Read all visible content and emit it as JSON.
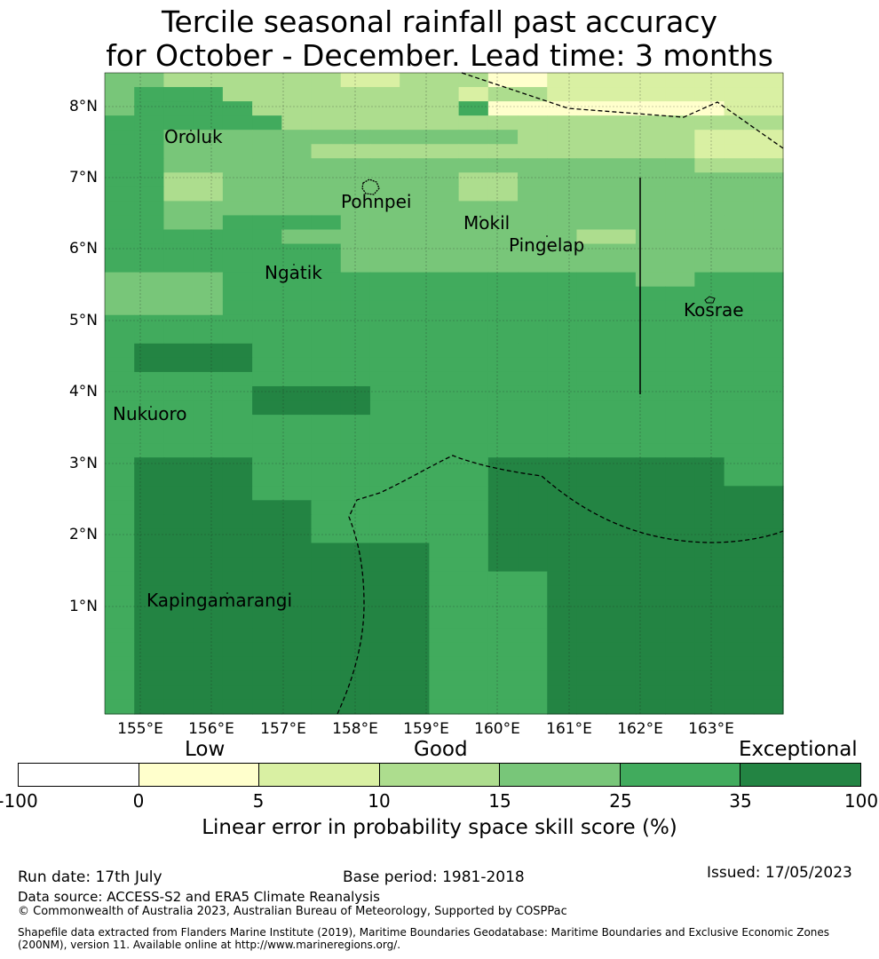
{
  "title_line1": "Tercile seasonal rainfall past accuracy",
  "title_line2": "for October - December. Lead time: 3 months",
  "lat_labels": [
    "8°N",
    "7°N",
    "6°N",
    "5°N",
    "4°N",
    "3°N",
    "2°N",
    "1°N"
  ],
  "lon_labels": [
    "155°E",
    "156°E",
    "157°E",
    "158°E",
    "159°E",
    "160°E",
    "161°E",
    "162°E",
    "163°E"
  ],
  "places": {
    "oroluk": "Oroluk",
    "pohnpei": "Pohnpei",
    "mokil": "Mokil",
    "pingelap": "Pingelap",
    "ngatik": "Ngatik",
    "kosrae": "Kosrae",
    "nukuoro": "Nukuoro",
    "kapingamarangi": "Kapingamarangi"
  },
  "colorbar": {
    "categories": {
      "low": "Low",
      "good": "Good",
      "exceptional": "Exceptional"
    },
    "ticks": [
      "-100",
      "0",
      "5",
      "10",
      "15",
      "25",
      "35",
      "100"
    ],
    "colors": [
      "#ffffff",
      "#ffffcc",
      "#d9f0a3",
      "#addd8e",
      "#78c679",
      "#41ab5d",
      "#238443"
    ],
    "title": "Linear error in probability space skill score (%)"
  },
  "footer": {
    "run_date": "Run date: 17th July",
    "base_period": "Base period: 1981-2018",
    "issued": "Issued: 17/05/2023",
    "data_source": "Data source: ACCESS-S2 and ERA5 Climate Reanalysis",
    "copyright": "© Commonwealth of Australia 2023, Australian Bureau of Meteorology, Supported by COSPPac",
    "shapefile_line1": "Shapefile data extracted from Flanders Marine Institute (2019), Maritime Boundaries Geodatabase: Maritime Boundaries and Exclusive Economic Zones",
    "shapefile_line2": "(200NM), version 11. Available online at http://www.marineregions.org/."
  },
  "skill_grid_legend_classes": [
    "0-5",
    "5-10",
    "10-15",
    "15-25",
    "25-35",
    "35-100"
  ],
  "skill_grid": [
    [
      3,
      3,
      2,
      2,
      2,
      2,
      2,
      2,
      1,
      1,
      2,
      2,
      2,
      0,
      0,
      1,
      1,
      1,
      1,
      1,
      1,
      1,
      1
    ],
    [
      3,
      4,
      4,
      4,
      2,
      2,
      2,
      2,
      2,
      2,
      2,
      2,
      1,
      2,
      2,
      1,
      1,
      1,
      1,
      1,
      1,
      1,
      1
    ],
    [
      3,
      4,
      4,
      4,
      4,
      2,
      2,
      2,
      2,
      2,
      2,
      2,
      4,
      0,
      0,
      0,
      0,
      0,
      0,
      0,
      0,
      1,
      1
    ],
    [
      4,
      4,
      4,
      4,
      4,
      4,
      2,
      2,
      2,
      2,
      2,
      2,
      2,
      2,
      2,
      2,
      2,
      2,
      2,
      2,
      2,
      2,
      2
    ],
    [
      4,
      4,
      3,
      3,
      3,
      3,
      3,
      3,
      3,
      3,
      3,
      3,
      3,
      3,
      2,
      2,
      2,
      2,
      2,
      2,
      1,
      1,
      1
    ],
    [
      4,
      4,
      3,
      3,
      3,
      3,
      3,
      2,
      2,
      2,
      2,
      2,
      2,
      2,
      2,
      2,
      2,
      2,
      2,
      2,
      1,
      1,
      1
    ],
    [
      4,
      4,
      3,
      3,
      3,
      3,
      3,
      3,
      3,
      3,
      3,
      3,
      3,
      3,
      3,
      3,
      3,
      3,
      3,
      3,
      2,
      2,
      2
    ],
    [
      4,
      4,
      2,
      2,
      3,
      3,
      3,
      3,
      3,
      3,
      3,
      3,
      2,
      2,
      3,
      3,
      3,
      3,
      3,
      3,
      3,
      3,
      3
    ],
    [
      4,
      4,
      2,
      2,
      3,
      3,
      3,
      3,
      3,
      3,
      3,
      3,
      2,
      2,
      3,
      3,
      3,
      3,
      3,
      3,
      3,
      3,
      3
    ],
    [
      4,
      4,
      3,
      3,
      3,
      3,
      3,
      3,
      3,
      3,
      3,
      3,
      3,
      3,
      3,
      3,
      3,
      3,
      3,
      3,
      3,
      3,
      3
    ],
    [
      4,
      4,
      3,
      3,
      4,
      4,
      4,
      4,
      3,
      3,
      3,
      3,
      3,
      3,
      3,
      3,
      3,
      3,
      3,
      3,
      3,
      3,
      3
    ],
    [
      4,
      4,
      4,
      4,
      4,
      4,
      3,
      3,
      3,
      3,
      3,
      3,
      3,
      3,
      3,
      3,
      2,
      2,
      3,
      3,
      3,
      3,
      3
    ],
    [
      4,
      4,
      4,
      4,
      4,
      4,
      4,
      4,
      3,
      3,
      3,
      3,
      3,
      3,
      3,
      3,
      3,
      3,
      3,
      3,
      3,
      3,
      3
    ],
    [
      4,
      4,
      4,
      4,
      4,
      4,
      4,
      4,
      3,
      3,
      3,
      3,
      3,
      3,
      3,
      3,
      3,
      3,
      3,
      3,
      3,
      3,
      3
    ],
    [
      3,
      3,
      3,
      3,
      4,
      4,
      4,
      4,
      4,
      4,
      4,
      4,
      4,
      4,
      4,
      4,
      4,
      4,
      3,
      3,
      4,
      4,
      4
    ],
    [
      3,
      3,
      3,
      3,
      4,
      4,
      4,
      4,
      4,
      4,
      4,
      4,
      4,
      4,
      4,
      4,
      4,
      4,
      4,
      4,
      4,
      4,
      4
    ],
    [
      3,
      3,
      3,
      3,
      4,
      4,
      4,
      4,
      4,
      4,
      4,
      4,
      4,
      4,
      4,
      4,
      4,
      4,
      4,
      4,
      4,
      4,
      4
    ],
    [
      4,
      4,
      4,
      4,
      4,
      4,
      4,
      4,
      4,
      4,
      4,
      4,
      4,
      4,
      4,
      4,
      4,
      4,
      4,
      4,
      4,
      4,
      4
    ],
    [
      4,
      4,
      4,
      4,
      4,
      4,
      4,
      4,
      4,
      4,
      4,
      4,
      4,
      4,
      4,
      4,
      4,
      4,
      4,
      4,
      4,
      4,
      4
    ],
    [
      4,
      5,
      5,
      5,
      5,
      4,
      4,
      4,
      4,
      4,
      4,
      4,
      4,
      4,
      4,
      4,
      4,
      4,
      4,
      4,
      4,
      4,
      4
    ],
    [
      4,
      5,
      5,
      5,
      5,
      4,
      4,
      4,
      4,
      4,
      4,
      4,
      4,
      4,
      4,
      4,
      4,
      4,
      4,
      4,
      4,
      4,
      4
    ],
    [
      4,
      4,
      4,
      4,
      4,
      4,
      4,
      4,
      4,
      4,
      4,
      4,
      4,
      4,
      4,
      4,
      4,
      4,
      4,
      4,
      4,
      4,
      4
    ],
    [
      4,
      4,
      4,
      4,
      4,
      5,
      5,
      5,
      5,
      4,
      4,
      4,
      4,
      4,
      4,
      4,
      4,
      4,
      4,
      4,
      4,
      4,
      4
    ],
    [
      4,
      4,
      4,
      4,
      4,
      5,
      5,
      5,
      5,
      4,
      4,
      4,
      4,
      4,
      4,
      4,
      4,
      4,
      4,
      4,
      4,
      4,
      4
    ],
    [
      4,
      4,
      4,
      4,
      4,
      4,
      4,
      4,
      4,
      4,
      4,
      4,
      4,
      4,
      4,
      4,
      4,
      4,
      4,
      4,
      4,
      4,
      4
    ],
    [
      4,
      4,
      4,
      4,
      4,
      4,
      4,
      4,
      4,
      4,
      4,
      4,
      4,
      4,
      4,
      4,
      4,
      4,
      4,
      4,
      4,
      4,
      4
    ],
    [
      4,
      4,
      4,
      4,
      4,
      4,
      4,
      4,
      4,
      4,
      4,
      4,
      4,
      4,
      4,
      4,
      4,
      4,
      4,
      4,
      4,
      4,
      4
    ],
    [
      4,
      5,
      5,
      5,
      5,
      4,
      4,
      4,
      4,
      4,
      4,
      4,
      4,
      5,
      5,
      5,
      5,
      5,
      5,
      5,
      5,
      4,
      4
    ],
    [
      4,
      5,
      5,
      5,
      5,
      4,
      4,
      4,
      4,
      4,
      4,
      4,
      4,
      5,
      5,
      5,
      5,
      5,
      5,
      5,
      5,
      4,
      4
    ],
    [
      4,
      5,
      5,
      5,
      5,
      4,
      4,
      4,
      4,
      4,
      4,
      4,
      4,
      5,
      5,
      5,
      5,
      5,
      5,
      5,
      5,
      5,
      5
    ],
    [
      4,
      5,
      5,
      5,
      5,
      5,
      5,
      4,
      4,
      4,
      4,
      4,
      4,
      5,
      5,
      5,
      5,
      5,
      5,
      5,
      5,
      5,
      5
    ],
    [
      4,
      5,
      5,
      5,
      5,
      5,
      5,
      4,
      4,
      4,
      4,
      4,
      4,
      5,
      5,
      5,
      5,
      5,
      5,
      5,
      5,
      5,
      5
    ],
    [
      4,
      5,
      5,
      5,
      5,
      5,
      5,
      4,
      4,
      4,
      4,
      4,
      4,
      5,
      5,
      5,
      5,
      5,
      5,
      5,
      5,
      5,
      5
    ],
    [
      4,
      5,
      5,
      5,
      5,
      5,
      5,
      5,
      5,
      5,
      5,
      4,
      4,
      5,
      5,
      5,
      5,
      5,
      5,
      5,
      5,
      5,
      5
    ],
    [
      4,
      5,
      5,
      5,
      5,
      5,
      5,
      5,
      5,
      5,
      5,
      4,
      4,
      5,
      5,
      5,
      5,
      5,
      5,
      5,
      5,
      5,
      5
    ],
    [
      4,
      5,
      5,
      5,
      5,
      5,
      5,
      5,
      5,
      5,
      5,
      4,
      4,
      4,
      4,
      5,
      5,
      5,
      5,
      5,
      5,
      5,
      5
    ],
    [
      4,
      5,
      5,
      5,
      5,
      5,
      5,
      5,
      5,
      5,
      5,
      4,
      4,
      4,
      4,
      5,
      5,
      5,
      5,
      5,
      5,
      5,
      5
    ],
    [
      4,
      5,
      5,
      5,
      5,
      5,
      5,
      5,
      5,
      5,
      5,
      4,
      4,
      4,
      4,
      5,
      5,
      5,
      5,
      5,
      5,
      5,
      5
    ],
    [
      4,
      5,
      5,
      5,
      5,
      5,
      5,
      5,
      5,
      5,
      5,
      4,
      4,
      4,
      4,
      5,
      5,
      5,
      5,
      5,
      5,
      5,
      5
    ],
    [
      4,
      5,
      5,
      5,
      5,
      5,
      5,
      5,
      5,
      5,
      5,
      4,
      4,
      4,
      4,
      5,
      5,
      5,
      5,
      5,
      5,
      5,
      5
    ],
    [
      4,
      5,
      5,
      5,
      5,
      5,
      5,
      5,
      5,
      5,
      5,
      4,
      4,
      4,
      4,
      5,
      5,
      5,
      5,
      5,
      5,
      5,
      5
    ],
    [
      4,
      5,
      5,
      5,
      5,
      5,
      5,
      5,
      5,
      5,
      5,
      4,
      4,
      4,
      4,
      5,
      5,
      5,
      5,
      5,
      5,
      5,
      5
    ],
    [
      4,
      5,
      5,
      5,
      5,
      5,
      5,
      5,
      5,
      5,
      5,
      4,
      4,
      4,
      4,
      5,
      5,
      5,
      5,
      5,
      5,
      5,
      5
    ],
    [
      4,
      5,
      5,
      5,
      5,
      5,
      5,
      5,
      5,
      5,
      5,
      4,
      4,
      4,
      4,
      5,
      5,
      5,
      5,
      5,
      5,
      5,
      5
    ],
    [
      4,
      5,
      5,
      5,
      5,
      5,
      5,
      5,
      5,
      5,
      5,
      4,
      4,
      4,
      4,
      5,
      5,
      5,
      5,
      5,
      5,
      5,
      5
    ]
  ]
}
